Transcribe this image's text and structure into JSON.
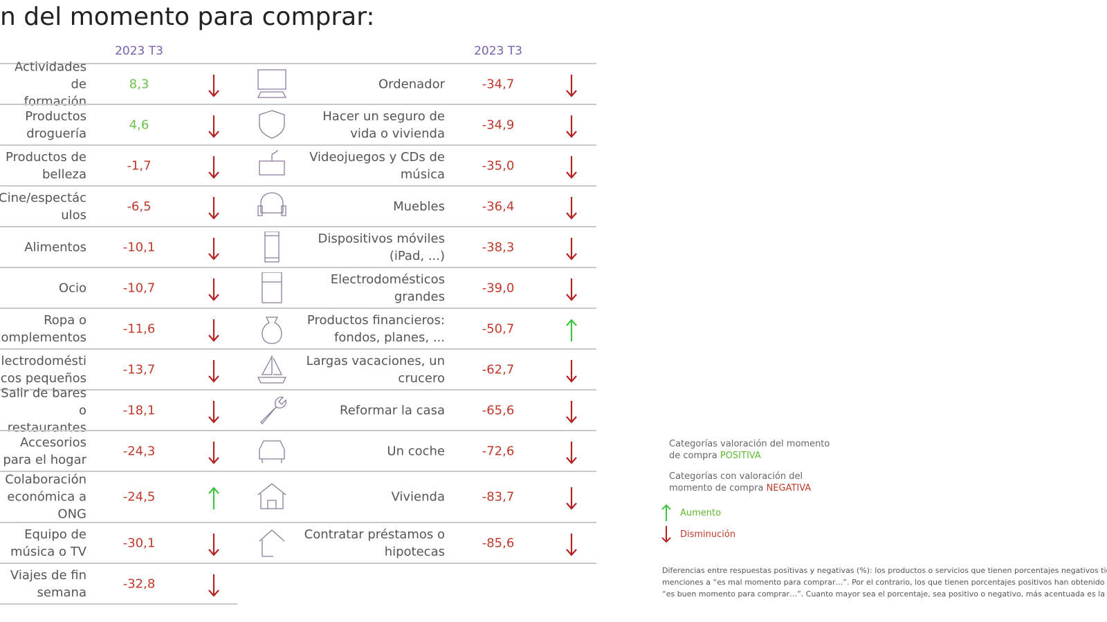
{
  "title": "n del momento para comprar:",
  "left_table": {
    "header": "2023 T3",
    "rows": [
      {
        "label": "Actividades de\nformación",
        "value": "8,3",
        "trend": "down"
      },
      {
        "label": "Productos\ndroguería",
        "value": "4,6",
        "trend": "down"
      },
      {
        "label": "Productos de\nbelleza",
        "value": "-1,7",
        "trend": "down"
      },
      {
        "label": "Cine/espectác\nulos",
        "value": "-6,5",
        "trend": "down"
      },
      {
        "label": "Alimentos",
        "value": "-10,1",
        "trend": "down"
      },
      {
        "label": "Ocio",
        "value": "-10,7",
        "trend": "down"
      },
      {
        "label": "Ropa o\nomplementos",
        "value": "-11,6",
        "trend": "down"
      },
      {
        "label": "lectrodomésti\ncos pequeños",
        "value": "-13,7",
        "trend": "down"
      },
      {
        "label": "Salir de bares\no restaurantes",
        "value": "-18,1",
        "trend": "down"
      },
      {
        "label": "Accesorios\npara el hogar",
        "value": "-24,3",
        "trend": "down"
      },
      {
        "label": "Colaboración\neconómica a\nONG",
        "value": "-24,5",
        "trend": "up"
      },
      {
        "label": "Equipo de\nmúsica o TV",
        "value": "-30,1",
        "trend": "down"
      },
      {
        "label": "Viajes de fin\nsemana",
        "value": "-32,8",
        "trend": "down"
      }
    ]
  },
  "right_table": {
    "header": "2023 T3",
    "rows": [
      {
        "label": "Ordenador",
        "value": "-34,7",
        "trend": "down"
      },
      {
        "label": "Hacer un seguro de\nvida o vivienda",
        "value": "-34,9",
        "trend": "down"
      },
      {
        "label": "Videojuegos y CDs de\nmúsica",
        "value": "-35,0",
        "trend": "down"
      },
      {
        "label": "Muebles",
        "value": "-36,4",
        "trend": "down"
      },
      {
        "label": "Dispositivos móviles\n(iPad, ...)",
        "value": "-38,3",
        "trend": "down"
      },
      {
        "label": "Electrodomésticos\ngrandes",
        "value": "-39,0",
        "trend": "down"
      },
      {
        "label": "Productos financieros:\nfondos, planes, ...",
        "value": "-50,7",
        "trend": "up"
      },
      {
        "label": "Largas vacaciones, un\ncrucero",
        "value": "-62,7",
        "trend": "down"
      },
      {
        "label": "Reformar la casa",
        "value": "-65,6",
        "trend": "down"
      },
      {
        "label": "Un coche",
        "value": "-72,6",
        "trend": "down"
      },
      {
        "label": "Vivienda",
        "value": "-83,7",
        "trend": "down"
      },
      {
        "label": "Contratar préstamos o\nhipotecas",
        "value": "-85,6",
        "trend": "down"
      }
    ]
  },
  "legend": {
    "positive": {
      "text": "Categorías valoración del momento\nde compra",
      "highlight": "POSITIVA"
    },
    "negative": {
      "text": "Categorías con valoración del\nmomento de compra",
      "highlight": "NEGATIVA"
    },
    "up": "Aumento",
    "down": "Disminución"
  },
  "footnote": [
    "Diferencias entre respuestas positivas y negativas (%): los productos o servicios que tienen porcentajes negativos tienen más",
    "menciones a “es mal momento para comprar…”. Por el contrario, los que tienen porcentajes positivos han obtenido más menciones a",
    "“es buen momento para comprar…”. Cuanto mayor sea el porcentaje, sea positivo o negativo, más acentuada es la tendencia."
  ]
}
